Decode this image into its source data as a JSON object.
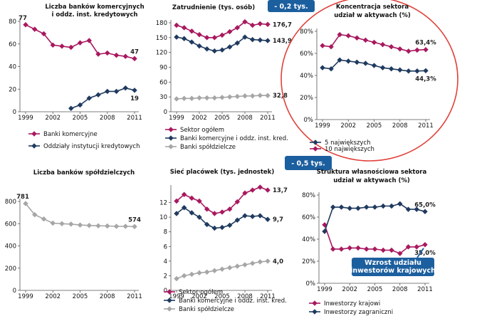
{
  "chart_data": [
    {
      "type": "line",
      "title": "Liczba banków komercyjnych\ni oddz. inst. kredytowych",
      "x": [
        1999,
        2000,
        2001,
        2002,
        2003,
        2004,
        2005,
        2006,
        2007,
        2008,
        2009,
        2010,
        2011
      ],
      "x_ticks": [
        "1999",
        "2002",
        "2005",
        "2008",
        "2011"
      ],
      "ylim": [
        0,
        80
      ],
      "y_ticks": [
        "0",
        "20",
        "40",
        "60",
        "80"
      ],
      "series": [
        {
          "name": "Banki komercyjne",
          "values": [
            77,
            73,
            69,
            59,
            58,
            57,
            61,
            63,
            51,
            52,
            50,
            49,
            47
          ]
        },
        {
          "name": "Oddziały instytucji kredytowych",
          "values": [
            null,
            null,
            null,
            null,
            null,
            3,
            6,
            12,
            15,
            18,
            18,
            21,
            19
          ]
        }
      ],
      "annotations": [
        {
          "text": "77",
          "series": 0,
          "index": 0,
          "position": "above"
        },
        {
          "text": "47",
          "series": 0,
          "index": 12,
          "position": "above"
        },
        {
          "text": "19",
          "series": 1,
          "index": 12,
          "position": "below"
        }
      ],
      "legend": "bottom",
      "grid": false,
      "colors": [
        "#a8195f",
        "#1f3a5f"
      ],
      "markers": [
        "diamond",
        "diamond"
      ]
    },
    {
      "type": "line",
      "title": "Zatrudnienie  (tys. osób)",
      "x": [
        1999,
        2000,
        2001,
        2002,
        2003,
        2004,
        2005,
        2006,
        2007,
        2008,
        2009,
        2010,
        2011
      ],
      "x_ticks": [
        "1999",
        "2002",
        "2005",
        "2008",
        "2011"
      ],
      "ylim": [
        0,
        180
      ],
      "y_ticks": [
        "0",
        "30",
        "60",
        "90",
        "120",
        "150",
        "180"
      ],
      "series": [
        {
          "name": "Sektor ogółem",
          "values": [
            175,
            170,
            163,
            156,
            150,
            150,
            155,
            162,
            170,
            182,
            175,
            178,
            176.7
          ]
        },
        {
          "name": "Banki komercyjne i oddz. inst. kred.",
          "values": [
            151,
            148,
            141,
            133,
            127,
            123,
            125,
            131,
            139,
            151,
            146,
            145,
            143.9
          ]
        },
        {
          "name": "Banki spółdzielcze",
          "values": [
            26,
            27,
            27,
            28,
            28,
            28,
            29,
            30,
            31,
            32,
            32,
            33,
            32.8
          ]
        }
      ],
      "annotations": [
        {
          "text": "176,7",
          "series": 0,
          "index": 12,
          "position": "right"
        },
        {
          "text": "143,9",
          "series": 1,
          "index": 12,
          "position": "right"
        },
        {
          "text": "32,8",
          "series": 2,
          "index": 12,
          "position": "right"
        }
      ],
      "callout": "- 0,2 tys.",
      "legend": "bottom",
      "grid": false,
      "colors": [
        "#a8195f",
        "#1f3a5f",
        "#a6a6a6"
      ],
      "markers": [
        "diamond",
        "diamond",
        "diamond"
      ]
    },
    {
      "type": "line",
      "title": "Koncentracja sektora\nudział w aktywach (%)",
      "x": [
        1999,
        2000,
        2001,
        2002,
        2003,
        2004,
        2005,
        2006,
        2007,
        2008,
        2009,
        2010,
        2011
      ],
      "x_ticks": [
        "1999",
        "2002",
        "2005",
        "2008",
        "2011"
      ],
      "ylim": [
        0,
        80
      ],
      "y_ticks": [
        "0%",
        "20%",
        "40%",
        "60%",
        "80%"
      ],
      "series": [
        {
          "name": "5 największych",
          "values": [
            47,
            46,
            54,
            53,
            52,
            51,
            49,
            47,
            46,
            45,
            44,
            44,
            44.3
          ]
        },
        {
          "name": "10 największych",
          "values": [
            67,
            66,
            77,
            76,
            74,
            72,
            70,
            68,
            66,
            64,
            62,
            63,
            63.4
          ]
        }
      ],
      "annotations": [
        {
          "text": "63,4%",
          "series": 1,
          "index": 12,
          "position": "above"
        },
        {
          "text": "44,3%",
          "series": 0,
          "index": 12,
          "position": "below"
        }
      ],
      "legend": "bottom",
      "grid": false,
      "colors": [
        "#1f3a5f",
        "#a8195f"
      ],
      "markers": [
        "diamond",
        "diamond"
      ],
      "highlight": "red-circle"
    },
    {
      "type": "line",
      "title": "Liczba banków spółdzielczych",
      "x": [
        1999,
        2000,
        2001,
        2002,
        2003,
        2004,
        2005,
        2006,
        2007,
        2008,
        2009,
        2010,
        2011
      ],
      "x_ticks": [
        "1999",
        "2002",
        "2005",
        "2008",
        "2011"
      ],
      "ylim": [
        0,
        800
      ],
      "y_ticks": [
        "0",
        "200",
        "400",
        "600",
        "800"
      ],
      "series": [
        {
          "name": "",
          "values": [
            781,
            681,
            642,
            605,
            600,
            596,
            588,
            584,
            581,
            579,
            576,
            576,
            574
          ]
        }
      ],
      "annotations": [
        {
          "text": "781",
          "series": 0,
          "index": 0,
          "position": "above"
        },
        {
          "text": "574",
          "series": 0,
          "index": 12,
          "position": "above"
        }
      ],
      "legend": "none",
      "grid": false,
      "colors": [
        "#a6a6a6"
      ],
      "markers": [
        "diamond"
      ]
    },
    {
      "type": "line",
      "title": "Sieć placówek  (tys. jednostek)",
      "x": [
        1999,
        2000,
        2001,
        2002,
        2003,
        2004,
        2005,
        2006,
        2007,
        2008,
        2009,
        2010,
        2011
      ],
      "x_ticks": [
        "1999",
        "2002",
        "2005",
        "2008",
        "2011"
      ],
      "ylim": [
        0,
        14
      ],
      "y_ticks": [
        "0",
        "2",
        "4",
        "6",
        "8",
        "10",
        "12"
      ],
      "series": [
        {
          "name": "Sektor ogółem",
          "values": [
            12.2,
            13.1,
            12.6,
            12.2,
            11.1,
            10.5,
            10.7,
            11.1,
            12.1,
            13.3,
            13.7,
            14.1,
            13.7
          ]
        },
        {
          "name": "Banki komercyjne i oddz. inst. kred.",
          "values": [
            10.5,
            11.3,
            10.6,
            10.0,
            9.0,
            8.5,
            8.6,
            8.9,
            9.6,
            10.2,
            10.1,
            10.2,
            9.7
          ]
        },
        {
          "name": "Banki spółdzielcze",
          "values": [
            1.6,
            2.0,
            2.2,
            2.4,
            2.5,
            2.7,
            2.9,
            3.1,
            3.3,
            3.5,
            3.7,
            3.9,
            4.0
          ]
        }
      ],
      "annotations": [
        {
          "text": "13,7",
          "series": 0,
          "index": 12,
          "position": "right"
        },
        {
          "text": "9,7",
          "series": 1,
          "index": 12,
          "position": "right"
        },
        {
          "text": "4,0",
          "series": 2,
          "index": 12,
          "position": "right"
        }
      ],
      "callout": "- 0,5 tys.",
      "legend": "bottom",
      "grid": false,
      "colors": [
        "#a8195f",
        "#1f3a5f",
        "#a6a6a6"
      ],
      "markers": [
        "diamond",
        "diamond",
        "diamond"
      ]
    },
    {
      "type": "line",
      "title": "Struktura własnościowa  sektora\nudział w aktywach (%)",
      "x": [
        1999,
        2000,
        2001,
        2002,
        2003,
        2004,
        2005,
        2006,
        2007,
        2008,
        2009,
        2010,
        2011
      ],
      "x_ticks": [
        "1999",
        "2002",
        "2005",
        "2008",
        "2011"
      ],
      "ylim": [
        0,
        80
      ],
      "y_ticks": [
        "0%",
        "20%",
        "40%",
        "60%",
        "80%"
      ],
      "series": [
        {
          "name": "Inwestorzy krajowi",
          "values": [
            53,
            31,
            31,
            32,
            32,
            31,
            31,
            30,
            30,
            27,
            33,
            33,
            35
          ]
        },
        {
          "name": "Inwestorzy zagraniczni",
          "values": [
            47,
            69,
            69,
            68,
            68,
            69,
            69,
            70,
            70,
            72,
            67,
            67,
            65
          ]
        }
      ],
      "annotations": [
        {
          "text": "65,0%",
          "series": 1,
          "index": 12,
          "position": "above"
        },
        {
          "text": "35,0%",
          "series": 0,
          "index": 12,
          "position": "below"
        }
      ],
      "callout": "Wzrost udziału\ninwestorów krajowych",
      "legend": "bottom",
      "grid": false,
      "colors": [
        "#a8195f",
        "#1f3a5f"
      ],
      "markers": [
        "diamond",
        "diamond"
      ]
    }
  ]
}
